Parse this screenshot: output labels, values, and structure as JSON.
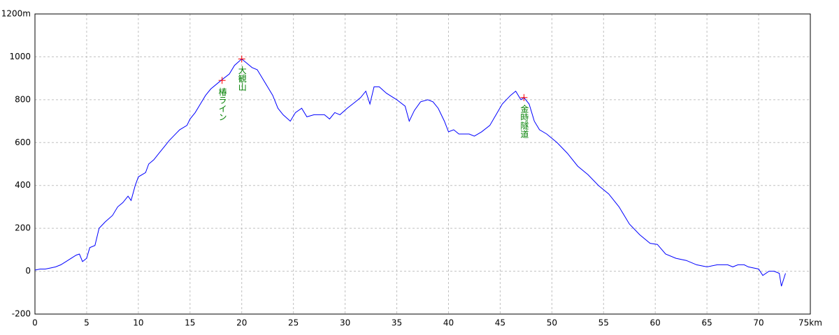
{
  "chart_data": {
    "type": "line",
    "x": [
      0,
      0.5,
      1,
      1.5,
      2,
      2.5,
      3,
      3.5,
      4,
      4.3,
      4.6,
      5,
      5.3,
      5.8,
      6.2,
      6.8,
      7.5,
      8,
      8.5,
      9,
      9.3,
      9.7,
      10,
      10.7,
      11,
      11.5,
      12,
      12.5,
      13,
      14,
      14.7,
      15,
      15.5,
      16,
      16.5,
      17,
      18,
      18.8,
      19.3,
      20,
      20.5,
      21,
      21.5,
      22,
      22.5,
      23,
      23.5,
      24,
      24.7,
      25.2,
      25.8,
      26.3,
      27,
      28,
      28.5,
      29,
      29.5,
      30.2,
      31,
      31.5,
      32,
      32.4,
      32.8,
      33.3,
      34,
      35,
      35.8,
      36.2,
      36.7,
      37.3,
      38,
      38.5,
      39,
      39.6,
      40,
      40.5,
      41,
      42,
      42.5,
      43.2,
      44,
      44.6,
      45.2,
      46,
      46.5,
      47,
      47.3,
      47.8,
      48.3,
      48.8,
      49.5,
      50.5,
      51.5,
      52.5,
      53.5,
      54.5,
      55.5,
      56.5,
      57.5,
      58.5,
      59.5,
      60.2,
      61,
      62,
      63,
      64,
      65,
      66,
      67,
      67.5,
      68,
      68.6,
      69,
      70,
      70.4,
      71,
      71.5,
      72,
      72.2,
      72.6
    ],
    "series": [
      {
        "color": "#0000ff",
        "values": [
          5,
          10,
          10,
          15,
          20,
          30,
          45,
          60,
          75,
          80,
          45,
          60,
          110,
          120,
          200,
          230,
          260,
          300,
          320,
          350,
          330,
          400,
          440,
          460,
          500,
          520,
          550,
          580,
          610,
          660,
          680,
          710,
          740,
          780,
          820,
          850,
          890,
          920,
          960,
          990,
          970,
          950,
          940,
          900,
          860,
          820,
          760,
          730,
          700,
          740,
          760,
          720,
          730,
          730,
          710,
          740,
          730,
          760,
          790,
          810,
          840,
          780,
          860,
          860,
          830,
          800,
          770,
          700,
          750,
          790,
          800,
          790,
          760,
          700,
          650,
          660,
          640,
          640,
          630,
          650,
          680,
          730,
          780,
          820,
          840,
          800,
          810,
          780,
          700,
          660,
          640,
          600,
          550,
          490,
          450,
          400,
          360,
          300,
          220,
          170,
          130,
          125,
          80,
          60,
          50,
          30,
          20,
          30,
          30,
          20,
          30,
          30,
          20,
          10,
          -20,
          0,
          0,
          -10,
          -70,
          -10
        ]
      }
    ],
    "xlim": [
      0,
      75
    ],
    "xticks": [
      0,
      5,
      10,
      15,
      20,
      25,
      30,
      35,
      40,
      45,
      50,
      55,
      60,
      65,
      70,
      {
        "value": 75,
        "label": "75km"
      }
    ],
    "ylim": [
      -200,
      1200
    ],
    "yticks": [
      -200,
      0,
      200,
      400,
      600,
      800,
      1000,
      {
        "value": 1200,
        "label": "1200m"
      }
    ],
    "grid": true,
    "annotations": [
      {
        "x": 18.1,
        "y": 890,
        "label": "椿ライン",
        "color": "#ff0000",
        "text_color": "#008000"
      },
      {
        "x": 20,
        "y": 990,
        "label": "大観山",
        "color": "#ff0000",
        "text_color": "#008000"
      },
      {
        "x": 47.3,
        "y": 810,
        "label": "金時隧道",
        "color": "#ff0000",
        "text_color": "#008000"
      }
    ]
  }
}
